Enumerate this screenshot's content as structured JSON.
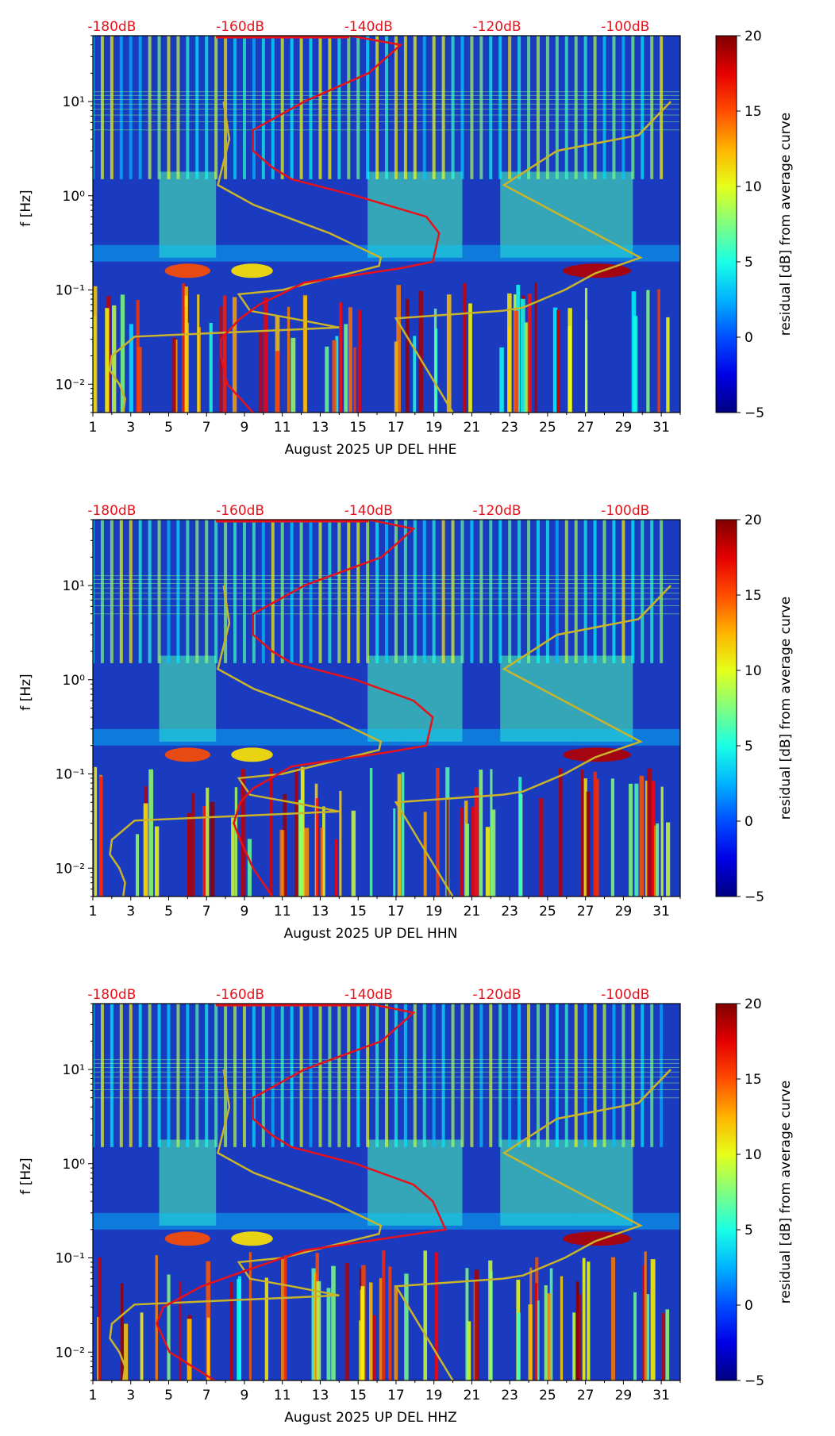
{
  "colorbar": {
    "label": "residual [dB] from average curve",
    "ticks": [
      "20",
      "15",
      "10",
      "5",
      "0",
      "−5"
    ],
    "tick_values": [
      20,
      15,
      10,
      5,
      0,
      -5
    ],
    "range": [
      -5,
      20
    ],
    "colormap": "jet"
  },
  "colors": {
    "curve_average": "#e8111a",
    "curve_noise_model": "#c9b42a",
    "db_label": "#e8111a",
    "background_spectrogram": "#1a3bbf"
  },
  "chart_data": [
    {
      "type": "heatmap",
      "xlabel": "August 2025 UP DEL  HHE",
      "ylabel": "f [Hz]",
      "x_ticks": [
        "1",
        "3",
        "5",
        "7",
        "9",
        "11",
        "13",
        "15",
        "17",
        "19",
        "21",
        "23",
        "25",
        "27",
        "29",
        "31"
      ],
      "x_range": [
        1,
        32
      ],
      "y_ticks": [
        "10¹",
        "10⁰",
        "10⁻¹",
        "10⁻²"
      ],
      "y_range_hz": [
        0.005,
        50
      ],
      "top_db_labels": [
        "-180dB",
        "-160dB",
        "-140dB",
        "-120dB",
        "-100dB"
      ],
      "top_db_values": [
        -180,
        -160,
        -140,
        -120,
        -100
      ],
      "curves": {
        "average_db": {
          "f": [
            50,
            40,
            20,
            10,
            5,
            3,
            2,
            1.5,
            1,
            0.6,
            0.4,
            0.2,
            0.17,
            0.12,
            0.07,
            0.05,
            0.03,
            0.02,
            0.01,
            0.005
          ],
          "db": [
            -143,
            -135,
            -140,
            -150,
            -158,
            -158,
            -155,
            -152,
            -142,
            -131,
            -129,
            -130,
            -135,
            -150,
            -157,
            -160,
            -163,
            -163,
            -162,
            -158
          ]
        },
        "noise_model_high": {
          "f": [
            10,
            4,
            1.3,
            0.8,
            0.4,
            0.22,
            0.18,
            0.1,
            0.09,
            0.06,
            0.05,
            0.04,
            0.032,
            0.02,
            0.014,
            0.01,
            0.007,
            0.005
          ],
          "day": [
            7.9,
            8.2,
            7.6,
            9.5,
            13.5,
            16.2,
            16.1,
            11,
            8.7,
            9.3,
            11.5,
            14,
            3.2,
            2.0,
            1.9,
            2.4,
            2.7,
            2.6
          ]
        },
        "noise_model_low": {
          "f": [
            10,
            4.4,
            3,
            1.3,
            0.22,
            0.15,
            0.1,
            0.065,
            0.06,
            0.05,
            0.005
          ],
          "day": [
            31.5,
            29.8,
            25.5,
            22.7,
            29.9,
            27.5,
            25.9,
            23.7,
            22.6,
            17,
            20
          ]
        }
      }
    },
    {
      "type": "heatmap",
      "xlabel": "August 2025 UP DEL  HHN",
      "ylabel": "f [Hz]",
      "x_ticks": [
        "1",
        "3",
        "5",
        "7",
        "9",
        "11",
        "13",
        "15",
        "17",
        "19",
        "21",
        "23",
        "25",
        "27",
        "29",
        "31"
      ],
      "x_range": [
        1,
        32
      ],
      "y_ticks": [
        "10¹",
        "10⁰",
        "10⁻¹",
        "10⁻²"
      ],
      "y_range_hz": [
        0.005,
        50
      ],
      "top_db_labels": [
        "-180dB",
        "-160dB",
        "-140dB",
        "-120dB",
        "-100dB"
      ],
      "top_db_values": [
        -180,
        -160,
        -140,
        -120,
        -100
      ],
      "curves": {
        "average_db": {
          "f": [
            50,
            40,
            20,
            10,
            5,
            3,
            2,
            1.5,
            1,
            0.6,
            0.4,
            0.2,
            0.17,
            0.12,
            0.07,
            0.05,
            0.03,
            0.02,
            0.01,
            0.005
          ],
          "db": [
            -140,
            -133,
            -138,
            -150,
            -158,
            -158,
            -155,
            -152,
            -142,
            -133,
            -130,
            -131,
            -137,
            -152,
            -158,
            -160,
            -161,
            -160,
            -158,
            -155
          ]
        },
        "noise_model_high": {
          "f": [
            10,
            4,
            1.3,
            0.8,
            0.4,
            0.22,
            0.18,
            0.1,
            0.09,
            0.06,
            0.05,
            0.04,
            0.032,
            0.02,
            0.014,
            0.01,
            0.007,
            0.005
          ],
          "day": [
            7.9,
            8.2,
            7.6,
            9.5,
            13.5,
            16.2,
            16.1,
            11,
            8.7,
            9.3,
            11.5,
            14,
            3.2,
            2.0,
            1.9,
            2.4,
            2.7,
            2.6
          ]
        },
        "noise_model_low": {
          "f": [
            10,
            4.4,
            3,
            1.3,
            0.22,
            0.15,
            0.1,
            0.065,
            0.06,
            0.05,
            0.005
          ],
          "day": [
            31.5,
            29.8,
            25.5,
            22.7,
            29.9,
            27.5,
            25.9,
            23.7,
            22.6,
            17,
            20
          ]
        }
      }
    },
    {
      "type": "heatmap",
      "xlabel": "August 2025 UP DEL  HHZ",
      "ylabel": "f [Hz]",
      "x_ticks": [
        "1",
        "3",
        "5",
        "7",
        "9",
        "11",
        "13",
        "15",
        "17",
        "19",
        "21",
        "23",
        "25",
        "27",
        "29",
        "31"
      ],
      "x_range": [
        1,
        32
      ],
      "y_ticks": [
        "10¹",
        "10⁰",
        "10⁻¹",
        "10⁻²"
      ],
      "y_range_hz": [
        0.005,
        50
      ],
      "top_db_labels": [
        "-180dB",
        "-160dB",
        "-140dB",
        "-120dB",
        "-100dB"
      ],
      "top_db_values": [
        -180,
        -160,
        -140,
        -120,
        -100
      ],
      "curves": {
        "average_db": {
          "f": [
            50,
            40,
            20,
            10,
            5,
            3,
            2,
            1.5,
            1,
            0.6,
            0.4,
            0.2,
            0.17,
            0.12,
            0.07,
            0.05,
            0.03,
            0.02,
            0.01,
            0.005
          ],
          "db": [
            -140,
            -133,
            -138,
            -150,
            -158,
            -158,
            -155,
            -152,
            -142,
            -133,
            -130,
            -128,
            -135,
            -150,
            -160,
            -166,
            -172,
            -173,
            -171,
            -164
          ]
        },
        "noise_model_high": {
          "f": [
            10,
            4,
            1.3,
            0.8,
            0.4,
            0.22,
            0.18,
            0.1,
            0.09,
            0.06,
            0.05,
            0.04,
            0.032,
            0.02,
            0.014,
            0.01,
            0.007,
            0.005
          ],
          "day": [
            7.9,
            8.2,
            7.6,
            9.5,
            13.5,
            16.2,
            16.1,
            11,
            8.7,
            9.3,
            11.5,
            14,
            3.2,
            2.0,
            1.9,
            2.4,
            2.7,
            2.6
          ]
        },
        "noise_model_low": {
          "f": [
            10,
            4.4,
            3,
            1.3,
            0.22,
            0.15,
            0.1,
            0.065,
            0.06,
            0.05,
            0.005
          ],
          "day": [
            31.5,
            29.8,
            25.5,
            22.7,
            29.9,
            27.5,
            25.9,
            23.7,
            22.6,
            17,
            20
          ]
        }
      }
    }
  ]
}
